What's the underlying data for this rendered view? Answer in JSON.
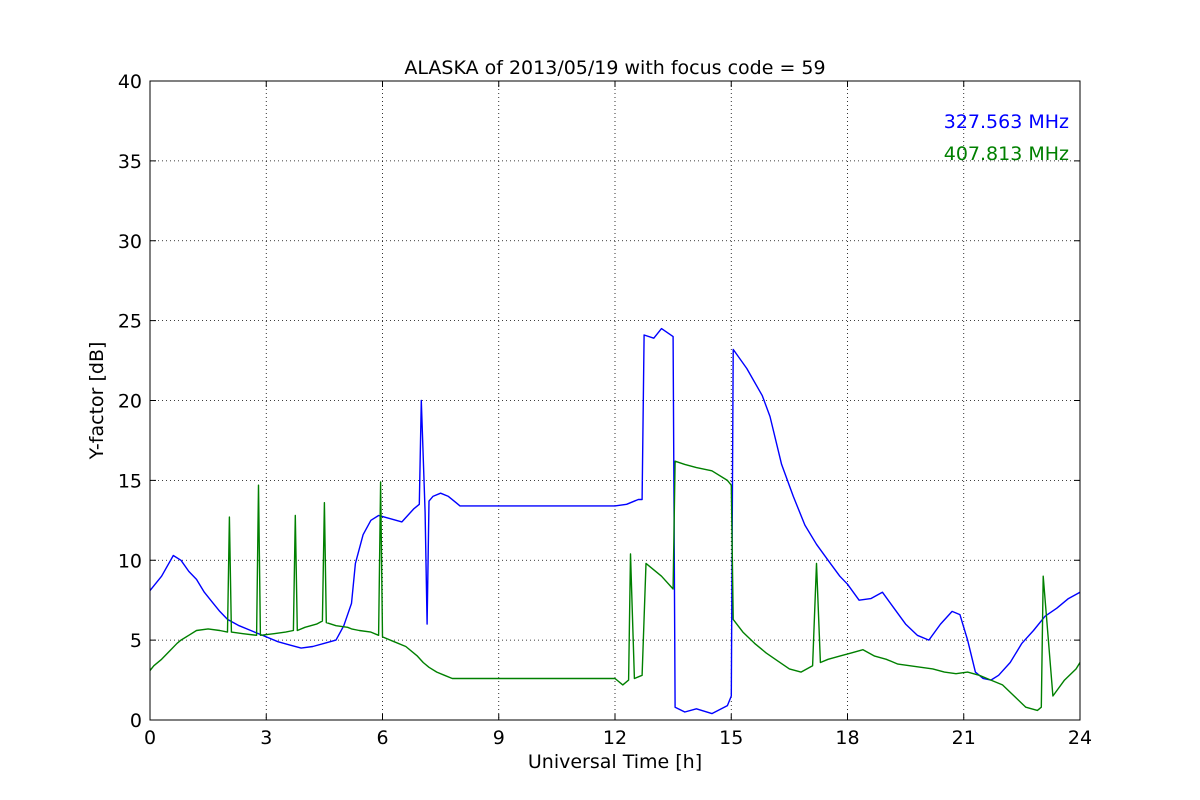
{
  "chart_data": {
    "type": "line",
    "title": "ALASKA of 2013/05/19 with focus code = 59",
    "xlabel": "Universal Time [h]",
    "ylabel": "Y-factor [dB]",
    "xlim": [
      0,
      24
    ],
    "ylim": [
      0,
      40
    ],
    "xticks": [
      0,
      3,
      6,
      9,
      12,
      15,
      18,
      21,
      24
    ],
    "yticks": [
      0,
      5,
      10,
      15,
      20,
      25,
      30,
      35,
      40
    ],
    "grid": true,
    "legend_position": "top-right",
    "series": [
      {
        "name": "327.563 MHz",
        "color": "#0000ff",
        "x": [
          0,
          0.3,
          0.6,
          0.8,
          1.0,
          1.2,
          1.4,
          1.6,
          1.8,
          2.0,
          2.3,
          2.6,
          3.0,
          3.3,
          3.6,
          3.9,
          4.2,
          4.5,
          4.8,
          5.0,
          5.2,
          5.3,
          5.5,
          5.7,
          5.9,
          6.2,
          6.5,
          6.8,
          6.95,
          7.0,
          7.1,
          7.15,
          7.2,
          7.3,
          7.5,
          7.7,
          7.9,
          8.0,
          12.0,
          12.3,
          12.6,
          12.7,
          12.75,
          13.0,
          13.2,
          13.5,
          13.55,
          13.8,
          14.1,
          14.5,
          14.9,
          15.0,
          15.05,
          15.4,
          15.8,
          16.0,
          16.3,
          16.6,
          16.9,
          17.2,
          17.5,
          17.8,
          18.0,
          18.3,
          18.6,
          18.9,
          19.2,
          19.5,
          19.8,
          20.1,
          20.4,
          20.7,
          20.9,
          21.1,
          21.3,
          21.5,
          21.7,
          21.9,
          22.2,
          22.5,
          22.8,
          23.1,
          23.4,
          23.7,
          24.0
        ],
        "values": [
          8.1,
          9.0,
          10.3,
          10.0,
          9.3,
          8.8,
          8.0,
          7.4,
          6.8,
          6.3,
          5.9,
          5.6,
          5.2,
          4.9,
          4.7,
          4.5,
          4.6,
          4.8,
          5.0,
          5.9,
          7.3,
          9.8,
          11.6,
          12.5,
          12.8,
          12.6,
          12.4,
          13.2,
          13.5,
          20.0,
          13.0,
          6.0,
          13.7,
          14.0,
          14.2,
          14.0,
          13.6,
          13.4,
          13.4,
          13.5,
          13.8,
          13.8,
          24.1,
          23.9,
          24.5,
          24.0,
          0.8,
          0.5,
          0.7,
          0.4,
          0.9,
          1.5,
          23.2,
          22.0,
          20.3,
          19.0,
          16.0,
          14.0,
          12.2,
          11.0,
          10.0,
          9.0,
          8.5,
          7.5,
          7.6,
          8.0,
          7.0,
          6.0,
          5.3,
          5.0,
          6.0,
          6.8,
          6.6,
          5.0,
          3.0,
          2.6,
          2.5,
          2.8,
          3.6,
          4.8,
          5.6,
          6.5,
          7.0,
          7.6,
          8.0
        ]
      },
      {
        "name": "407.813 MHz",
        "color": "#008000",
        "x": [
          0,
          0.1,
          0.3,
          0.5,
          0.7,
          0.8,
          1.0,
          1.2,
          1.5,
          1.8,
          2.0,
          2.05,
          2.1,
          2.4,
          2.75,
          2.8,
          2.85,
          3.2,
          3.5,
          3.7,
          3.75,
          3.8,
          4.0,
          4.3,
          4.45,
          4.5,
          4.55,
          4.8,
          5.1,
          5.2,
          5.4,
          5.7,
          5.9,
          5.95,
          6.0,
          6.3,
          6.6,
          6.9,
          7.05,
          7.2,
          7.4,
          7.6,
          7.8,
          8.0,
          12.0,
          12.2,
          12.35,
          12.4,
          12.5,
          12.7,
          12.8,
          13.2,
          13.5,
          13.55,
          13.8,
          14.1,
          14.5,
          14.9,
          15.0,
          15.05,
          15.3,
          15.6,
          15.9,
          16.2,
          16.5,
          16.8,
          17.1,
          17.2,
          17.3,
          17.5,
          17.8,
          18.1,
          18.4,
          18.7,
          19.0,
          19.3,
          19.6,
          19.9,
          20.2,
          20.5,
          20.8,
          21.1,
          21.4,
          21.7,
          22.0,
          22.3,
          22.6,
          22.9,
          23.0,
          23.05,
          23.3,
          23.6,
          23.9,
          24.0
        ],
        "values": [
          3.1,
          3.4,
          3.8,
          4.3,
          4.8,
          5.0,
          5.3,
          5.6,
          5.7,
          5.6,
          5.5,
          12.7,
          5.5,
          5.4,
          5.3,
          14.7,
          5.3,
          5.4,
          5.5,
          5.6,
          12.8,
          5.6,
          5.8,
          6.0,
          6.2,
          13.6,
          6.1,
          5.9,
          5.8,
          5.7,
          5.6,
          5.5,
          5.3,
          14.9,
          5.2,
          4.9,
          4.6,
          4.0,
          3.6,
          3.3,
          3.0,
          2.8,
          2.6,
          2.6,
          2.6,
          2.2,
          2.5,
          10.4,
          2.6,
          2.8,
          9.8,
          9.0,
          8.2,
          16.2,
          16.0,
          15.8,
          15.6,
          15.0,
          14.7,
          6.3,
          5.5,
          4.8,
          4.2,
          3.7,
          3.2,
          3.0,
          3.4,
          9.8,
          3.6,
          3.8,
          4.0,
          4.2,
          4.4,
          4.0,
          3.8,
          3.5,
          3.4,
          3.3,
          3.2,
          3.0,
          2.9,
          3.0,
          2.8,
          2.5,
          2.2,
          1.5,
          0.8,
          0.6,
          0.8,
          9.0,
          1.5,
          2.5,
          3.2,
          3.6
        ]
      }
    ]
  }
}
